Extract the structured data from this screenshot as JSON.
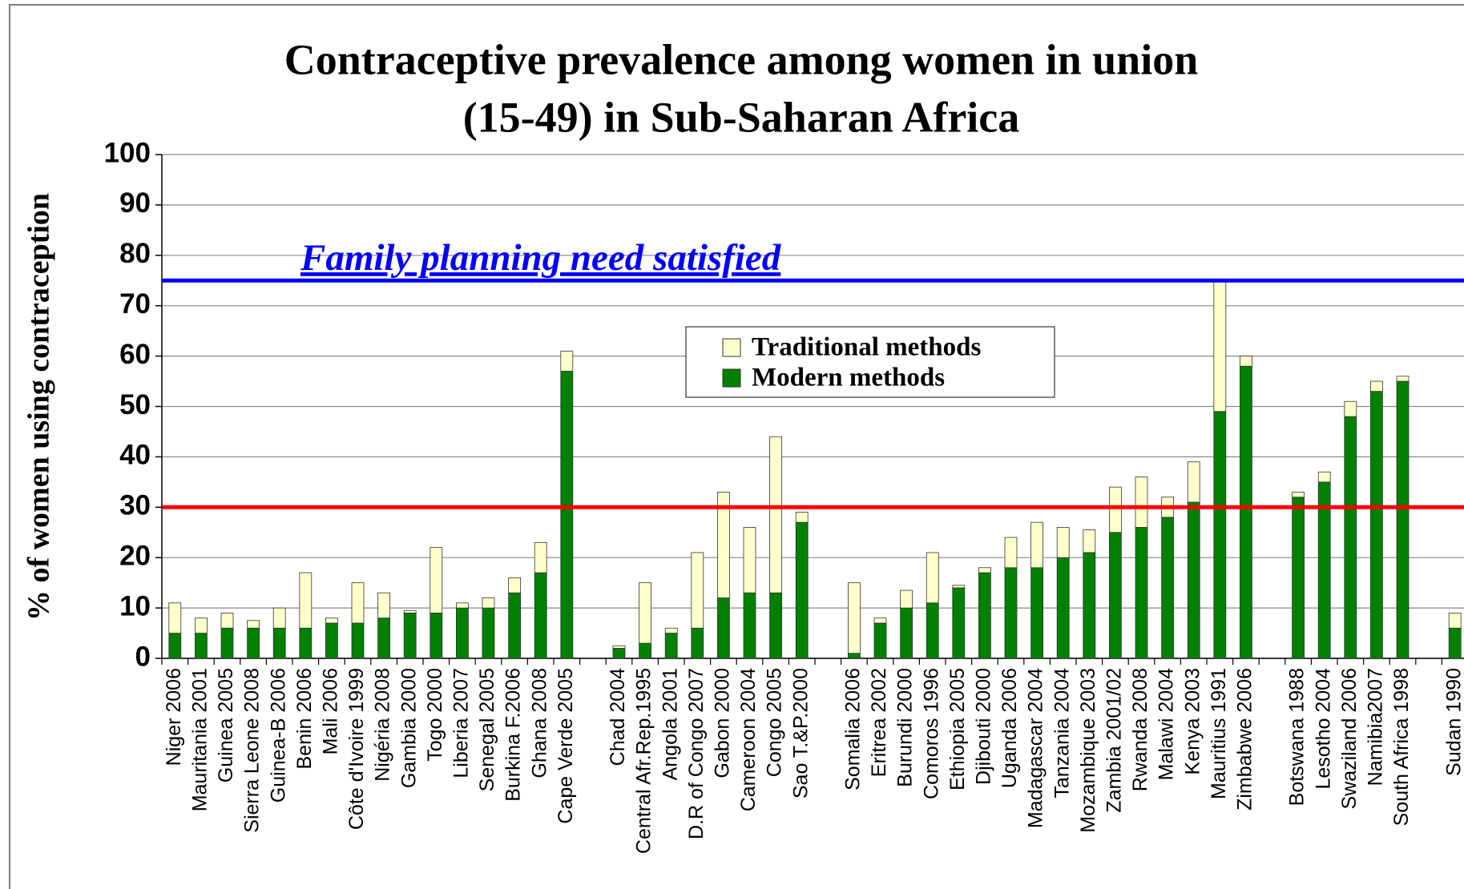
{
  "chart_data": {
    "type": "stacked_bar",
    "title": [
      "Contraceptive prevalence among women in union",
      "(15-49) in Sub-Saharan Africa"
    ],
    "y_label": "% of women using contraception",
    "categories": [
      "Niger 2006",
      "Mauritania 2001",
      "Guinea 2005",
      "Sierra Leone 2008",
      "Guinea-B 2006",
      "Benin 2006",
      "Mali 2006",
      "Côte d'Ivoire 1999",
      "Nigéria 2008",
      "Gambia 2000",
      "Togo 2000",
      "Liberia 2007",
      "Senegal 2005",
      "Burkina F.2006",
      "Ghana 2008",
      "Cape Verde 2005",
      null,
      "Chad 2004",
      "Central Afr.Rep.1995",
      "Angola 2001",
      "D.R of Congo 2007",
      "Gabon 2000",
      "Cameroon 2004",
      "Congo 2005",
      "Sao T.&P.2000",
      null,
      "Somalia 2006",
      "Eritrea 2002",
      "Burundi 2000",
      "Comoros 1996",
      "Ethiopia 2005",
      "Djibouti 2000",
      "Uganda 2006",
      "Madagascar 2004",
      "Tanzania 2004",
      "Mozambique 2003",
      "Zambia 2001/02",
      "Rwanda 2008",
      "Malawi 2004",
      "Kenya 2003",
      "Mauritius 1991",
      "Zimbabwe 2006",
      null,
      "Botswana 1988",
      "Lesotho 2004",
      "Swaziland 2006",
      "Namibia2007",
      "South Africa 1998",
      null,
      "Sudan 1990"
    ],
    "series": [
      {
        "name": "Modern methods",
        "color": "#008000",
        "values": [
          5,
          5,
          6,
          6,
          6,
          6,
          7,
          7,
          8,
          9,
          9,
          10,
          10,
          13,
          17,
          57,
          null,
          2,
          3,
          5,
          6,
          12,
          13,
          13,
          27,
          null,
          1,
          7,
          10,
          11,
          14,
          17,
          18,
          18,
          20,
          21,
          25,
          26,
          28,
          31,
          49,
          58,
          null,
          32,
          35,
          48,
          53,
          55,
          null,
          6
        ]
      },
      {
        "name": "Traditional methods",
        "color": "#ffffcc",
        "values": [
          6,
          3,
          3,
          1.5,
          4,
          11,
          1,
          8,
          5,
          0.5,
          13,
          1,
          2,
          3,
          6,
          4,
          null,
          0.5,
          12,
          1,
          15,
          21,
          13,
          31,
          2,
          null,
          14,
          1,
          3.5,
          10,
          0.5,
          1,
          6,
          9,
          6,
          4.5,
          9,
          10,
          4,
          8,
          26,
          2,
          null,
          1,
          2,
          3,
          2,
          1,
          null,
          3
        ]
      }
    ],
    "reference_lines": [
      {
        "value": 75,
        "color": "#0000ff",
        "label": "Family planning need satisfied"
      },
      {
        "value": 30,
        "color": "#ff0000"
      }
    ],
    "ylim": [
      0,
      100
    ],
    "yticks": [
      0,
      10,
      20,
      30,
      40,
      50,
      60,
      70,
      80,
      90,
      100
    ],
    "grid": true
  }
}
